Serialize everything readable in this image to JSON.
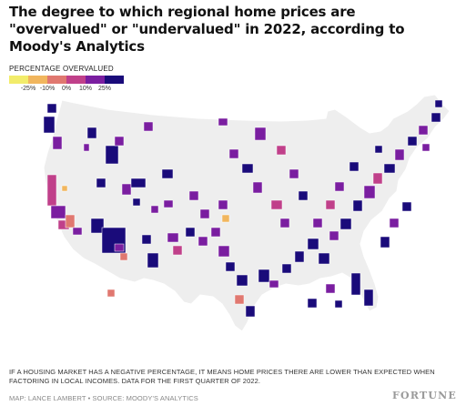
{
  "title": "The degree to which regional home prices are \"overvalued\" or \"undervalued\" in 2022, according to Moody's Analytics",
  "legend": {
    "title": "PERCENTAGE OVERVALUED",
    "labels": [
      "-25%",
      "-10%",
      "0%",
      "10%",
      "25%"
    ],
    "colors": [
      "#f2ec6a",
      "#f1b65e",
      "#e07870",
      "#c0408a",
      "#7a1ea0",
      "#1a0b7a"
    ]
  },
  "map": {
    "land_color": "#eeeeee",
    "border_color": "#ffffff"
  },
  "footnote": "IF A HOUSING MARKET HAS A NEGATIVE PERCENTAGE, IT MEANS HOME PRICES THERE ARE LOWER THAN EXPECTED WHEN FACTORING IN LOCAL INCOMES. DATA FOR THE FIRST QUARTER OF 2022.",
  "credit": "MAP: LANCE LAMBERT • SOURCE: MOODY'S ANALYTICS",
  "brand": "FORTUNE"
}
